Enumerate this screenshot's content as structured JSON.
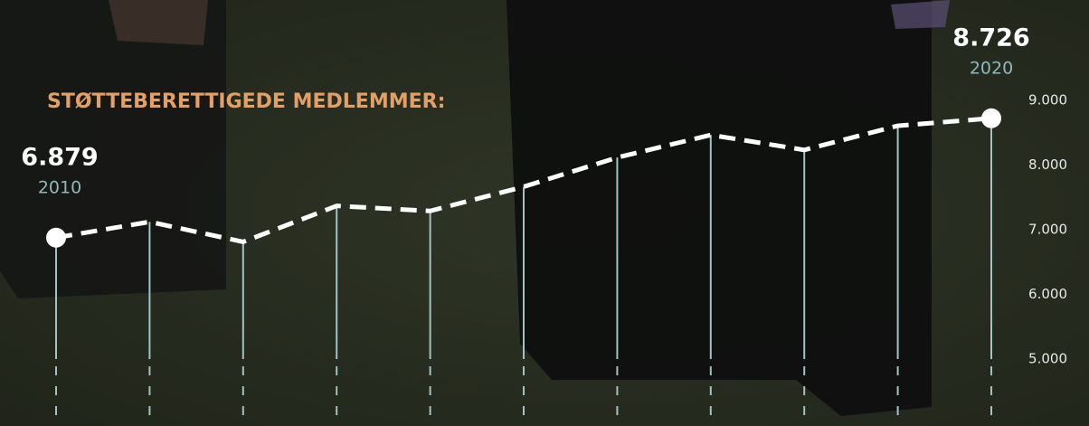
{
  "chart_data": {
    "type": "line",
    "title": "STØTTEBERETTIGEDE MEDLEMMER:",
    "categories": [
      "2010",
      null,
      null,
      null,
      null,
      null,
      null,
      null,
      null,
      null,
      "2020"
    ],
    "values": [
      6879,
      7124,
      6814,
      7370,
      7292,
      7667,
      8119,
      8468,
      8236,
      8610,
      8726
    ],
    "value_labels": [
      "6.879",
      null,
      null,
      null,
      null,
      null,
      null,
      null,
      null,
      null,
      "8.726"
    ],
    "color": "#ffffff",
    "ylim": [
      4000,
      10500
    ],
    "yticks": [
      {
        "value": 5000,
        "label": "5.000"
      },
      {
        "value": 6000,
        "label": "6.000"
      },
      {
        "value": 7000,
        "label": "7.000"
      },
      {
        "value": 8000,
        "label": "8.000"
      },
      {
        "value": 9000,
        "label": "9.000"
      }
    ]
  }
}
